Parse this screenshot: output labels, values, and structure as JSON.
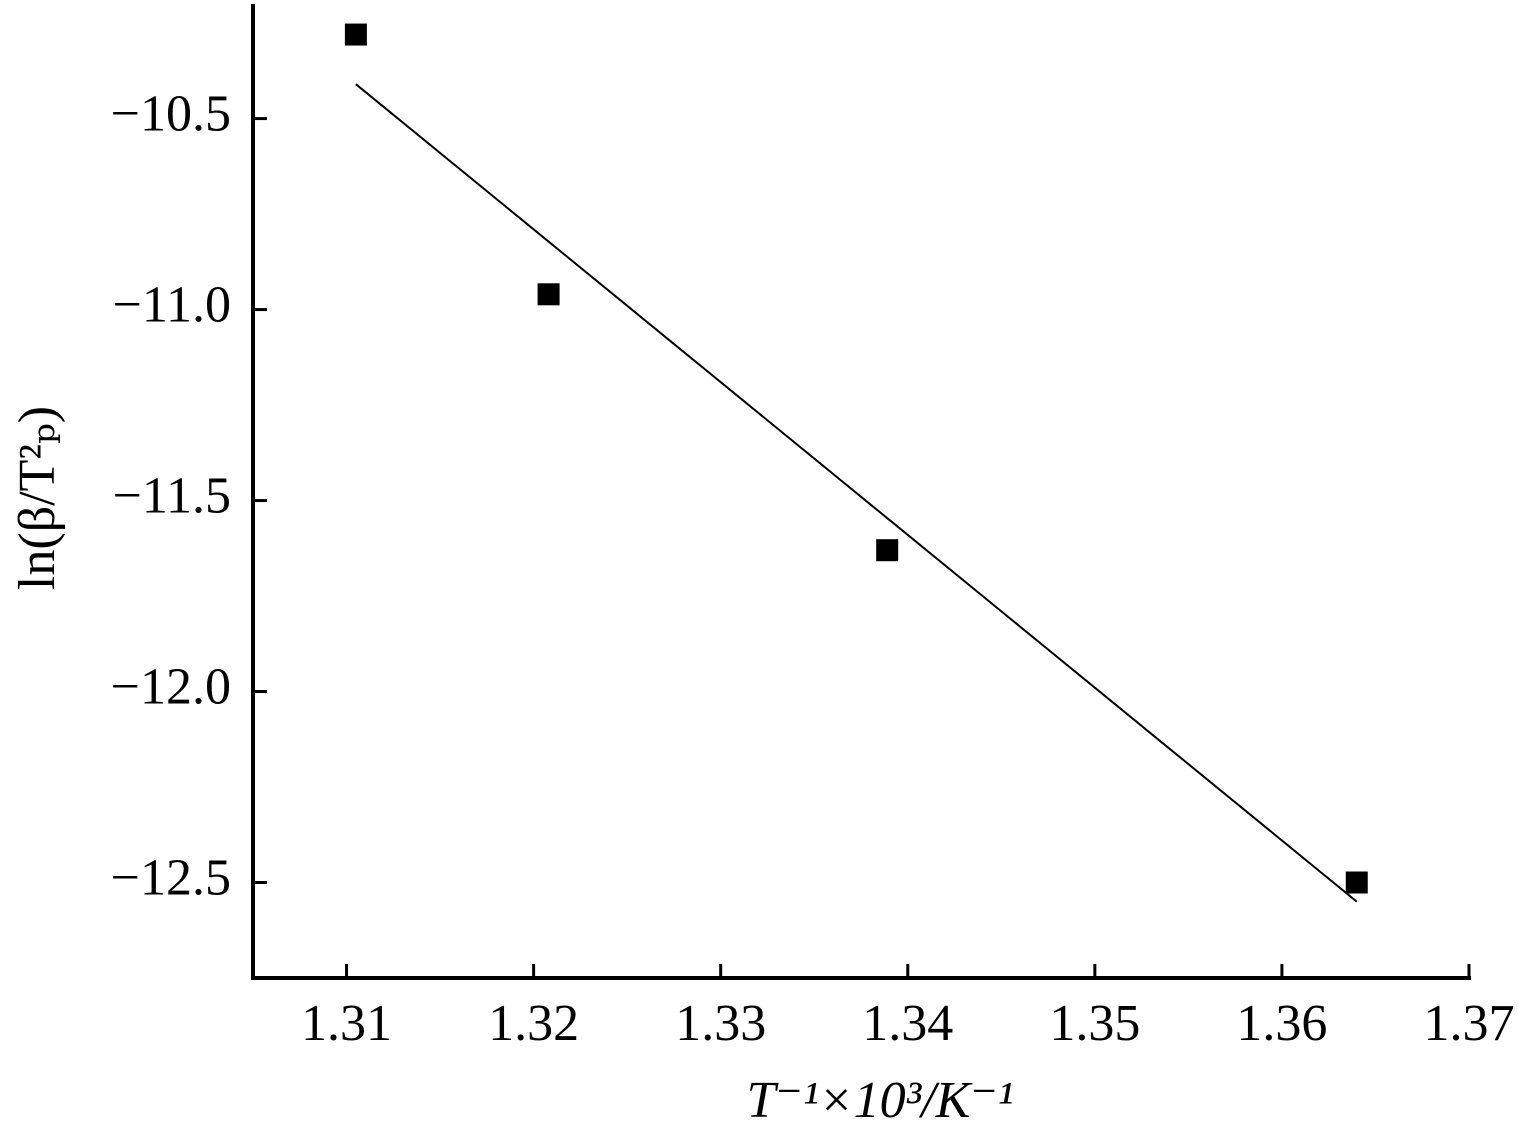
{
  "chart_data": {
    "type": "scatter",
    "xlabel": "T⁻¹×10³/K⁻¹",
    "ylabel": "ln(β/T²ₚ)",
    "x": [
      1.3105,
      1.3208,
      1.3389,
      1.364
    ],
    "y": [
      -10.28,
      -10.96,
      -11.63,
      -12.5
    ],
    "color": "#000000",
    "fit": {
      "x": [
        1.3105,
        1.364
      ],
      "y": [
        -10.41,
        -12.55
      ],
      "color": "#000000"
    },
    "xlim": [
      1.305,
      1.37
    ],
    "ylim": [
      -12.75,
      -10.2
    ],
    "xticks": [
      1.31,
      1.32,
      1.33,
      1.34,
      1.35,
      1.36,
      1.37
    ],
    "yticks": [
      {
        "value": -10.5,
        "label": "−10.5"
      },
      {
        "value": -11.0,
        "label": "−11.0"
      },
      {
        "value": -11.5,
        "label": "−11.5"
      },
      {
        "value": -12.0,
        "label": "−12.0"
      },
      {
        "value": -12.5,
        "label": "−12.5"
      }
    ],
    "grid": false
  }
}
